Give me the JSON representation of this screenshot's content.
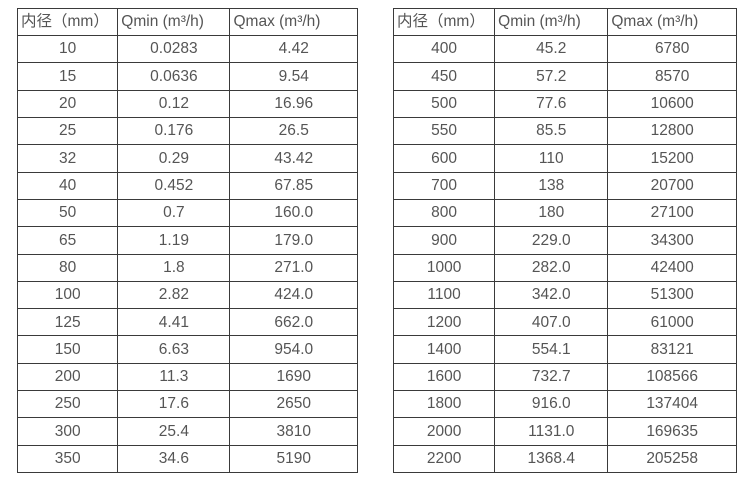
{
  "tables": [
    {
      "name": "flow-table-left",
      "headers": [
        "内径（mm）",
        "Qmin (m³/h)",
        "Qmax (m³/h)"
      ],
      "rows": [
        [
          "10",
          "0.0283",
          "4.42"
        ],
        [
          "15",
          "0.0636",
          "9.54"
        ],
        [
          "20",
          "0.12",
          "16.96"
        ],
        [
          "25",
          "0.176",
          "26.5"
        ],
        [
          "32",
          "0.29",
          "43.42"
        ],
        [
          "40",
          "0.452",
          "67.85"
        ],
        [
          "50",
          "0.7",
          "160.0"
        ],
        [
          "65",
          "1.19",
          "179.0"
        ],
        [
          "80",
          "1.8",
          "271.0"
        ],
        [
          "100",
          "2.82",
          "424.0"
        ],
        [
          "125",
          "4.41",
          "662.0"
        ],
        [
          "150",
          "6.63",
          "954.0"
        ],
        [
          "200",
          "11.3",
          "1690"
        ],
        [
          "250",
          "17.6",
          "2650"
        ],
        [
          "300",
          "25.4",
          "3810"
        ],
        [
          "350",
          "34.6",
          "5190"
        ]
      ]
    },
    {
      "name": "flow-table-right",
      "headers": [
        "内径（mm）",
        "Qmin (m³/h)",
        "Qmax (m³/h)"
      ],
      "rows": [
        [
          "400",
          "45.2",
          "6780"
        ],
        [
          "450",
          "57.2",
          "8570"
        ],
        [
          "500",
          "77.6",
          "10600"
        ],
        [
          "550",
          "85.5",
          "12800"
        ],
        [
          "600",
          "110",
          "15200"
        ],
        [
          "700",
          "138",
          "20700"
        ],
        [
          "800",
          "180",
          "27100"
        ],
        [
          "900",
          "229.0",
          "34300"
        ],
        [
          "1000",
          "282.0",
          "42400"
        ],
        [
          "1100",
          "342.0",
          "51300"
        ],
        [
          "1200",
          "407.0",
          "61000"
        ],
        [
          "1400",
          "554.1",
          "83121"
        ],
        [
          "1600",
          "732.7",
          "108566"
        ],
        [
          "1800",
          "916.0",
          "137404"
        ],
        [
          "2000",
          "1131.0",
          "169635"
        ],
        [
          "2200",
          "1368.4",
          "205258"
        ]
      ]
    }
  ],
  "colors": {
    "border": "#3a3a3a",
    "text": "#555555",
    "background": "#ffffff"
  }
}
